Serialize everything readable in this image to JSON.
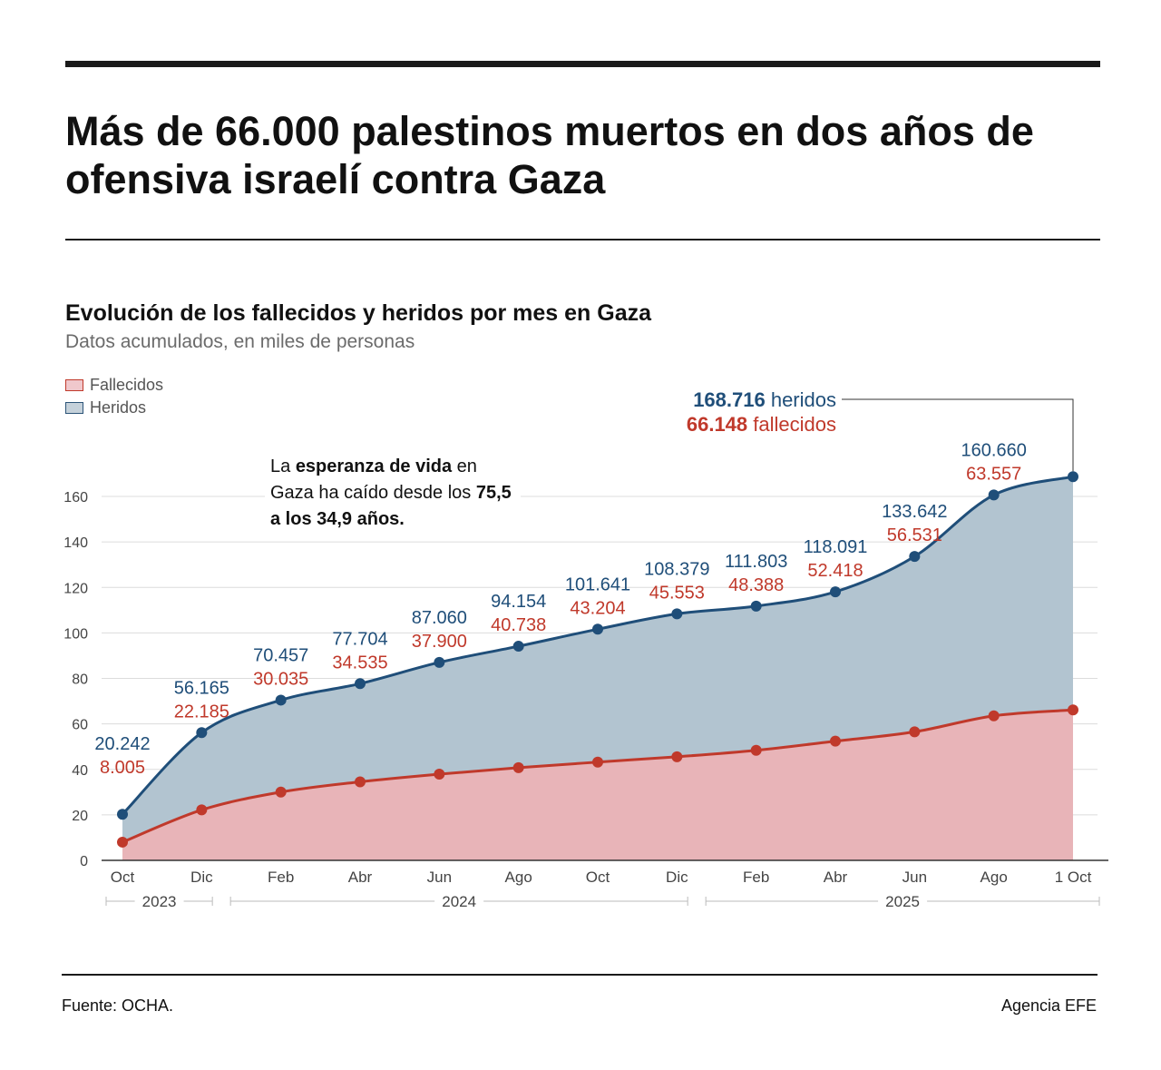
{
  "headline": "Más de 66.000 palestinos muertos en dos años de ofensiva israelí contra Gaza",
  "subtitle": "Evolución de los fallecidos y heridos por mes en Gaza",
  "subnote": "Datos acumulados, en miles de personas",
  "legend": {
    "deaths": "Fallecidos",
    "injured": "Heridos"
  },
  "annotation": {
    "p1": "La ",
    "b1": "esperanza de vida",
    "p2": " en Gaza ha caído desde los ",
    "b2": "75,5 a los 34,9 años."
  },
  "totals": {
    "injured_value": "168.716",
    "injured_word": " heridos",
    "deaths_value": "66.148",
    "deaths_word": " fallecidos"
  },
  "source": "Fuente: OCHA.",
  "credit": "Agencia EFE",
  "colors": {
    "deaths_line": "#c0392b",
    "deaths_fill": "#e8b4b8",
    "injured_line": "#1f4e79",
    "injured_fill": "#b2c4d0"
  },
  "chart_data": {
    "type": "area",
    "title": "Evolución de los fallecidos y heridos por mes en Gaza",
    "ylabel": "Datos acumulados, en miles de personas",
    "ylim": [
      0,
      170
    ],
    "yticks": [
      0,
      20,
      40,
      60,
      80,
      100,
      120,
      140,
      160
    ],
    "x_month_index": [
      0,
      2,
      4,
      6,
      8,
      10,
      12,
      14,
      16,
      18,
      20,
      22,
      24
    ],
    "xticks": [
      "Oct",
      "Dic",
      "Feb",
      "Abr",
      "Jun",
      "Ago",
      "Oct",
      "Dic",
      "Feb",
      "Abr",
      "Jun",
      "Ago",
      "1 Oct"
    ],
    "year_groups": [
      {
        "label": "2023",
        "from": 0,
        "to": 2
      },
      {
        "label": "2024",
        "from": 3,
        "to": 14
      },
      {
        "label": "2025",
        "from": 15,
        "to": 24
      }
    ],
    "series": [
      {
        "name": "Heridos",
        "values": [
          20.242,
          56.165,
          70.457,
          77.704,
          87.06,
          94.154,
          101.641,
          108.379,
          111.803,
          118.091,
          133.642,
          160.66,
          168.716
        ],
        "labels": [
          "20.242",
          "56.165",
          "70.457",
          "77.704",
          "87.060",
          "94.154",
          "101.641",
          "108.379",
          "111.803",
          "118.091",
          "133.642",
          "160.660",
          ""
        ]
      },
      {
        "name": "Fallecidos",
        "values": [
          8.005,
          22.185,
          30.035,
          34.535,
          37.9,
          40.738,
          43.204,
          45.553,
          48.388,
          52.418,
          56.531,
          63.557,
          66.148
        ],
        "labels": [
          "8.005",
          "22.185",
          "30.035",
          "34.535",
          "37.900",
          "40.738",
          "43.204",
          "45.553",
          "48.388",
          "52.418",
          "56.531",
          "63.557",
          ""
        ]
      }
    ]
  }
}
